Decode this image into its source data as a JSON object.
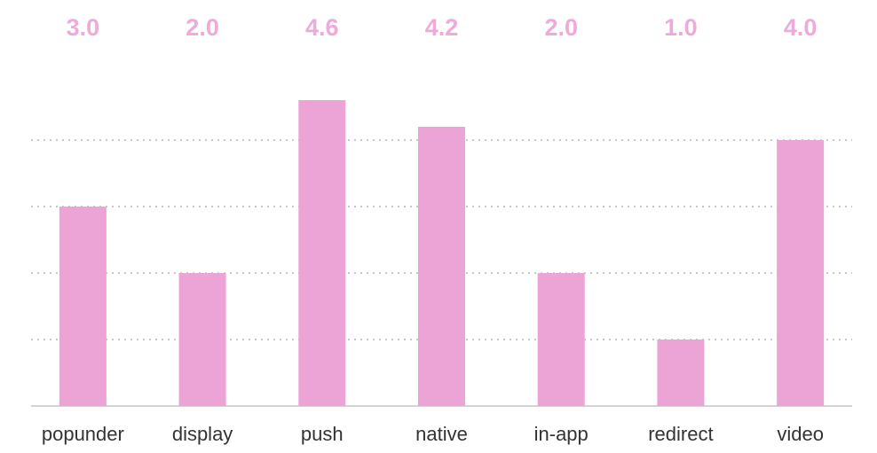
{
  "chart_data": {
    "type": "bar",
    "categories": [
      "popunder",
      "display",
      "push",
      "native",
      "in-app",
      "redirect",
      "video"
    ],
    "values": [
      3,
      2,
      4.6,
      4.2,
      2,
      1,
      4
    ],
    "value_labels": [
      "3.0",
      "2.0",
      "4.6",
      "4.2",
      "2.0",
      "1.0",
      "4.0"
    ],
    "color": "#eba4d5",
    "ylim": [
      0,
      5
    ],
    "yticks": [
      1,
      2,
      3,
      4
    ],
    "grid": true
  }
}
